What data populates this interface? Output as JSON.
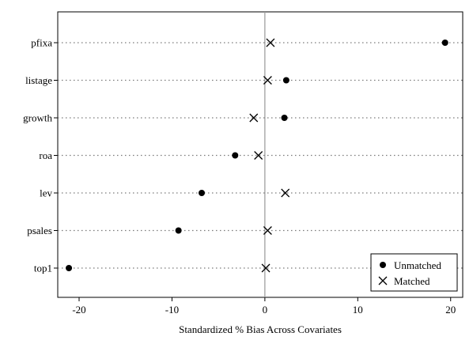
{
  "chart_data": {
    "type": "scatter",
    "title": "",
    "xlabel": "Standardized % Bias Across Covariates",
    "ylabel": "",
    "xlim": [
      -22.3,
      21.3
    ],
    "xticks": [
      -20,
      -10,
      0,
      10,
      20
    ],
    "xtick_labels": [
      "-20",
      "-10",
      "0",
      "10",
      "20"
    ],
    "categories": [
      "pfixa",
      "listage",
      "growth",
      "roa",
      "lev",
      "psales",
      "top1"
    ],
    "reference_line_x": 0,
    "grid": "dotted horizontal lines per category",
    "legend_position": "bottom-right",
    "series": [
      {
        "name": "Unmatched",
        "marker": "filled-circle",
        "values": [
          19.4,
          2.3,
          2.1,
          -3.2,
          -6.8,
          -9.3,
          -21.1
        ]
      },
      {
        "name": "Matched",
        "marker": "x-cross",
        "values": [
          0.6,
          0.3,
          -1.2,
          -0.7,
          2.2,
          0.3,
          0.1
        ]
      }
    ]
  }
}
